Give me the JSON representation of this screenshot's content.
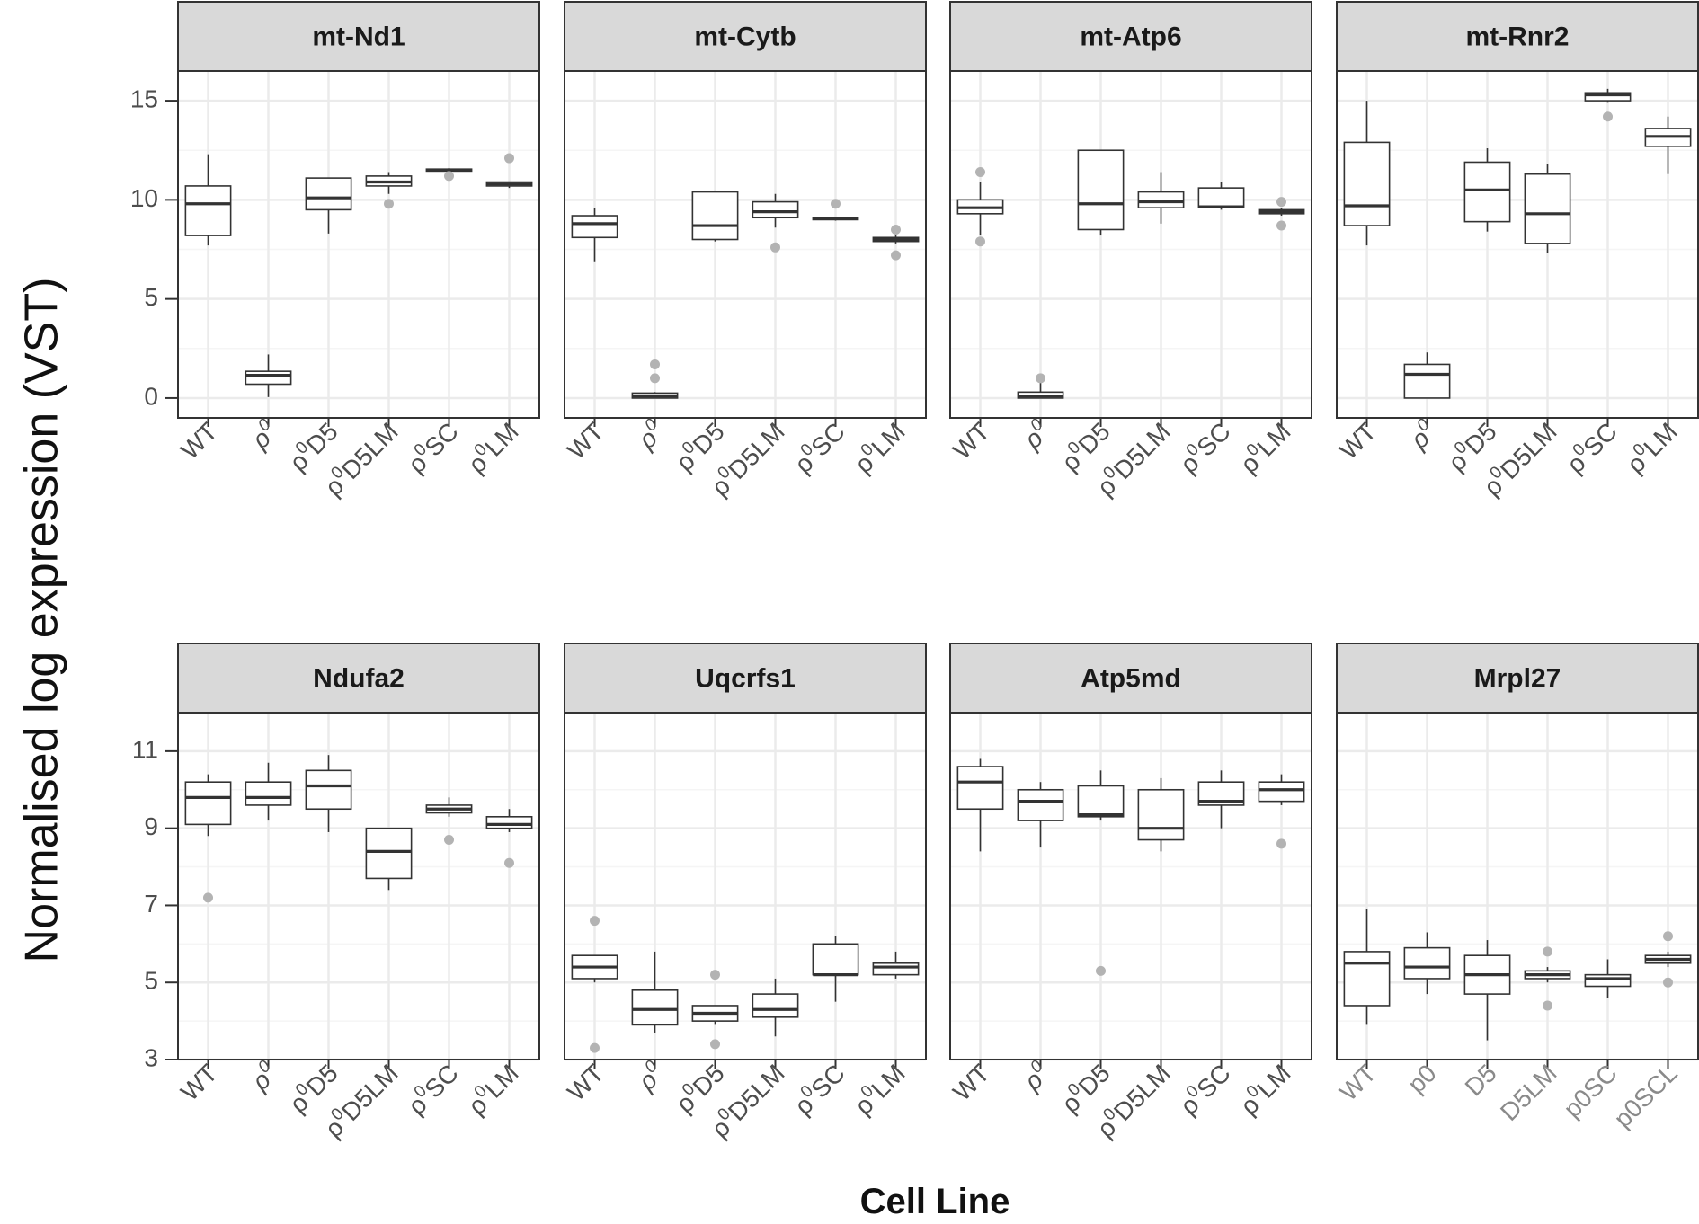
{
  "chart_data": {
    "type": "boxplot",
    "ylabel": "Normalised log expression (VST)",
    "xlabel": "Cell Line",
    "rows": [
      {
        "ylim": [
          -1,
          16.5
        ],
        "yticks": [
          0,
          5,
          10,
          15
        ]
      },
      {
        "ylim": [
          3,
          12
        ],
        "yticks": [
          3,
          5,
          7,
          9,
          11
        ]
      }
    ],
    "colors": {
      "strip_bg": "#d9d9d9",
      "panel_border": "#333333",
      "grid_major": "#ebebeb",
      "grid_minor": "#f5f5f5",
      "box": "#333333",
      "outlier": "#b3b3b3",
      "tick_text": "#4d4d4d",
      "tick_text_grey": "#8a8a8a"
    },
    "panels": [
      {
        "title": "mt-Nd1",
        "row": 0,
        "col": 0,
        "categories": [
          {
            "base": "WT",
            "sup": ""
          },
          {
            "base": "ρ",
            "sup": "0"
          },
          {
            "base": "ρ",
            "sup": "0",
            "rest": "D5"
          },
          {
            "base": "ρ",
            "sup": "0",
            "rest": "D5LM"
          },
          {
            "base": "ρ",
            "sup": "0",
            "rest": "SC"
          },
          {
            "base": "ρ",
            "sup": "0",
            "rest": "LM"
          }
        ],
        "boxes": [
          {
            "lw": 7.7,
            "q1": 8.2,
            "med": 9.8,
            "q3": 10.7,
            "uw": 12.3,
            "out": []
          },
          {
            "lw": 0.05,
            "q1": 0.7,
            "med": 1.15,
            "q3": 1.35,
            "uw": 2.2,
            "out": []
          },
          {
            "lw": 8.3,
            "q1": 9.5,
            "med": 10.1,
            "q3": 11.1,
            "uw": 11.1,
            "out": []
          },
          {
            "lw": 10.3,
            "q1": 10.7,
            "med": 10.9,
            "q3": 11.2,
            "uw": 11.4,
            "out": [
              9.8
            ]
          },
          {
            "lw": 11.4,
            "q1": 11.45,
            "med": 11.5,
            "q3": 11.55,
            "uw": 11.6,
            "out": [
              11.2
            ]
          },
          {
            "lw": 10.6,
            "q1": 10.7,
            "med": 10.8,
            "q3": 10.9,
            "uw": 10.9,
            "out": [
              12.1
            ]
          }
        ]
      },
      {
        "title": "mt-Cytb",
        "row": 0,
        "col": 1,
        "categories": [
          {
            "base": "WT",
            "sup": ""
          },
          {
            "base": "ρ",
            "sup": "0"
          },
          {
            "base": "ρ",
            "sup": "0",
            "rest": "D5"
          },
          {
            "base": "ρ",
            "sup": "0",
            "rest": "D5LM"
          },
          {
            "base": "ρ",
            "sup": "0",
            "rest": "SC"
          },
          {
            "base": "ρ",
            "sup": "0",
            "rest": "LM"
          }
        ],
        "boxes": [
          {
            "lw": 6.9,
            "q1": 8.1,
            "med": 8.8,
            "q3": 9.2,
            "uw": 9.6,
            "out": []
          },
          {
            "lw": 0.0,
            "q1": 0.0,
            "med": 0.1,
            "q3": 0.25,
            "uw": 0.3,
            "out": [
              1.0,
              1.7
            ]
          },
          {
            "lw": 7.9,
            "q1": 8.0,
            "med": 8.7,
            "q3": 10.4,
            "uw": 10.4,
            "out": []
          },
          {
            "lw": 8.6,
            "q1": 9.1,
            "med": 9.4,
            "q3": 9.9,
            "uw": 10.3,
            "out": [
              7.6
            ]
          },
          {
            "lw": 8.95,
            "q1": 9.0,
            "med": 9.05,
            "q3": 9.1,
            "uw": 9.1,
            "out": [
              9.8
            ]
          },
          {
            "lw": 7.8,
            "q1": 7.9,
            "med": 8.0,
            "q3": 8.1,
            "uw": 8.3,
            "out": [
              8.5,
              7.2
            ]
          }
        ]
      },
      {
        "title": "mt-Atp6",
        "row": 0,
        "col": 2,
        "categories": [
          {
            "base": "WT",
            "sup": ""
          },
          {
            "base": "ρ",
            "sup": "0"
          },
          {
            "base": "ρ",
            "sup": "0",
            "rest": "D5"
          },
          {
            "base": "ρ",
            "sup": "0",
            "rest": "D5LM"
          },
          {
            "base": "ρ",
            "sup": "0",
            "rest": "SC"
          },
          {
            "base": "ρ",
            "sup": "0",
            "rest": "LM"
          }
        ],
        "boxes": [
          {
            "lw": 8.2,
            "q1": 9.3,
            "med": 9.6,
            "q3": 10.0,
            "uw": 10.9,
            "out": [
              11.4,
              7.9
            ]
          },
          {
            "lw": 0.0,
            "q1": 0.0,
            "med": 0.1,
            "q3": 0.3,
            "uw": 0.9,
            "out": [
              1.0
            ]
          },
          {
            "lw": 8.2,
            "q1": 8.5,
            "med": 9.8,
            "q3": 12.5,
            "uw": 12.5,
            "out": []
          },
          {
            "lw": 8.8,
            "q1": 9.6,
            "med": 9.9,
            "q3": 10.4,
            "uw": 11.4,
            "out": []
          },
          {
            "lw": 9.5,
            "q1": 9.6,
            "med": 9.65,
            "q3": 10.6,
            "uw": 10.9,
            "out": []
          },
          {
            "lw": 9.2,
            "q1": 9.3,
            "med": 9.4,
            "q3": 9.5,
            "uw": 9.6,
            "out": [
              9.9,
              8.7
            ]
          }
        ]
      },
      {
        "title": "mt-Rnr2",
        "row": 0,
        "col": 3,
        "categories": [
          {
            "base": "WT",
            "sup": ""
          },
          {
            "base": "ρ",
            "sup": "0"
          },
          {
            "base": "ρ",
            "sup": "0",
            "rest": "D5"
          },
          {
            "base": "ρ",
            "sup": "0",
            "rest": "D5LM"
          },
          {
            "base": "ρ",
            "sup": "0",
            "rest": "SC"
          },
          {
            "base": "ρ",
            "sup": "0",
            "rest": "LM"
          }
        ],
        "boxes": [
          {
            "lw": 7.7,
            "q1": 8.7,
            "med": 9.7,
            "q3": 12.9,
            "uw": 15.0,
            "out": []
          },
          {
            "lw": 0.0,
            "q1": 0.0,
            "med": 1.2,
            "q3": 1.7,
            "uw": 2.3,
            "out": []
          },
          {
            "lw": 8.4,
            "q1": 8.9,
            "med": 10.5,
            "q3": 11.9,
            "uw": 12.6,
            "out": []
          },
          {
            "lw": 7.3,
            "q1": 7.8,
            "med": 9.3,
            "q3": 11.3,
            "uw": 11.8,
            "out": []
          },
          {
            "lw": 14.9,
            "q1": 15.0,
            "med": 15.3,
            "q3": 15.4,
            "uw": 15.6,
            "out": [
              14.2
            ]
          },
          {
            "lw": 11.3,
            "q1": 12.7,
            "med": 13.2,
            "q3": 13.6,
            "uw": 14.2,
            "out": []
          }
        ]
      },
      {
        "title": "Ndufa2",
        "row": 1,
        "col": 0,
        "categories": [
          {
            "base": "WT",
            "sup": ""
          },
          {
            "base": "ρ",
            "sup": "0"
          },
          {
            "base": "ρ",
            "sup": "0",
            "rest": "D5"
          },
          {
            "base": "ρ",
            "sup": "0",
            "rest": "D5LM"
          },
          {
            "base": "ρ",
            "sup": "0",
            "rest": "SC"
          },
          {
            "base": "ρ",
            "sup": "0",
            "rest": "LM"
          }
        ],
        "boxes": [
          {
            "lw": 8.8,
            "q1": 9.1,
            "med": 9.8,
            "q3": 10.2,
            "uw": 10.4,
            "out": [
              7.2
            ]
          },
          {
            "lw": 9.2,
            "q1": 9.6,
            "med": 9.8,
            "q3": 10.2,
            "uw": 10.7,
            "out": []
          },
          {
            "lw": 8.9,
            "q1": 9.5,
            "med": 10.1,
            "q3": 10.5,
            "uw": 10.9,
            "out": []
          },
          {
            "lw": 7.4,
            "q1": 7.7,
            "med": 8.4,
            "q3": 9.0,
            "uw": 9.0,
            "out": []
          },
          {
            "lw": 9.3,
            "q1": 9.4,
            "med": 9.5,
            "q3": 9.6,
            "uw": 9.8,
            "out": [
              8.7
            ]
          },
          {
            "lw": 8.9,
            "q1": 9.0,
            "med": 9.1,
            "q3": 9.3,
            "uw": 9.5,
            "out": [
              8.1
            ]
          }
        ]
      },
      {
        "title": "Uqcrfs1",
        "row": 1,
        "col": 1,
        "categories": [
          {
            "base": "WT",
            "sup": ""
          },
          {
            "base": "ρ",
            "sup": "0"
          },
          {
            "base": "ρ",
            "sup": "0",
            "rest": "D5"
          },
          {
            "base": "ρ",
            "sup": "0",
            "rest": "D5LM"
          },
          {
            "base": "ρ",
            "sup": "0",
            "rest": "SC"
          },
          {
            "base": "ρ",
            "sup": "0",
            "rest": "LM"
          }
        ],
        "boxes": [
          {
            "lw": 5.0,
            "q1": 5.1,
            "med": 5.4,
            "q3": 5.7,
            "uw": 5.7,
            "out": [
              6.6,
              3.3
            ]
          },
          {
            "lw": 3.7,
            "q1": 3.9,
            "med": 4.3,
            "q3": 4.8,
            "uw": 5.8,
            "out": []
          },
          {
            "lw": 3.9,
            "q1": 4.0,
            "med": 4.2,
            "q3": 4.4,
            "uw": 4.4,
            "out": [
              5.2,
              3.4
            ]
          },
          {
            "lw": 3.6,
            "q1": 4.1,
            "med": 4.3,
            "q3": 4.7,
            "uw": 5.1,
            "out": []
          },
          {
            "lw": 4.5,
            "q1": 5.2,
            "med": 5.2,
            "q3": 6.0,
            "uw": 6.2,
            "out": []
          },
          {
            "lw": 5.1,
            "q1": 5.2,
            "med": 5.4,
            "q3": 5.5,
            "uw": 5.8,
            "out": []
          }
        ]
      },
      {
        "title": "Atp5md",
        "row": 1,
        "col": 2,
        "categories": [
          {
            "base": "WT",
            "sup": ""
          },
          {
            "base": "ρ",
            "sup": "0"
          },
          {
            "base": "ρ",
            "sup": "0",
            "rest": "D5"
          },
          {
            "base": "ρ",
            "sup": "0",
            "rest": "D5LM"
          },
          {
            "base": "ρ",
            "sup": "0",
            "rest": "SC"
          },
          {
            "base": "ρ",
            "sup": "0",
            "rest": "LM"
          }
        ],
        "boxes": [
          {
            "lw": 8.4,
            "q1": 9.5,
            "med": 10.2,
            "q3": 10.6,
            "uw": 10.8,
            "out": []
          },
          {
            "lw": 8.5,
            "q1": 9.2,
            "med": 9.7,
            "q3": 10.0,
            "uw": 10.2,
            "out": []
          },
          {
            "lw": 9.2,
            "q1": 9.3,
            "med": 9.35,
            "q3": 10.1,
            "uw": 10.5,
            "out": [
              5.3
            ]
          },
          {
            "lw": 8.4,
            "q1": 8.7,
            "med": 9.0,
            "q3": 10.0,
            "uw": 10.3,
            "out": []
          },
          {
            "lw": 9.0,
            "q1": 9.6,
            "med": 9.7,
            "q3": 10.2,
            "uw": 10.5,
            "out": []
          },
          {
            "lw": 9.6,
            "q1": 9.7,
            "med": 10.0,
            "q3": 10.2,
            "uw": 10.4,
            "out": [
              8.6
            ]
          }
        ]
      },
      {
        "title": "Mrpl27",
        "row": 1,
        "col": 3,
        "grey_labels": true,
        "categories": [
          {
            "base": "WT",
            "sup": ""
          },
          {
            "base": "p0",
            "sup": ""
          },
          {
            "base": "D5",
            "sup": ""
          },
          {
            "base": "D5LM",
            "sup": ""
          },
          {
            "base": "p0SC",
            "sup": ""
          },
          {
            "base": "p0SCL",
            "sup": ""
          }
        ],
        "boxes": [
          {
            "lw": 3.9,
            "q1": 4.4,
            "med": 5.5,
            "q3": 5.8,
            "uw": 6.9,
            "out": []
          },
          {
            "lw": 4.7,
            "q1": 5.1,
            "med": 5.4,
            "q3": 5.9,
            "uw": 6.3,
            "out": []
          },
          {
            "lw": 3.5,
            "q1": 4.7,
            "med": 5.2,
            "q3": 5.7,
            "uw": 6.1,
            "out": []
          },
          {
            "lw": 5.0,
            "q1": 5.1,
            "med": 5.2,
            "q3": 5.3,
            "uw": 5.4,
            "out": [
              5.8,
              4.4
            ]
          },
          {
            "lw": 4.6,
            "q1": 4.9,
            "med": 5.1,
            "q3": 5.2,
            "uw": 5.6,
            "out": []
          },
          {
            "lw": 5.4,
            "q1": 5.5,
            "med": 5.6,
            "q3": 5.7,
            "uw": 5.8,
            "out": [
              6.2,
              5.0
            ]
          }
        ]
      }
    ]
  }
}
